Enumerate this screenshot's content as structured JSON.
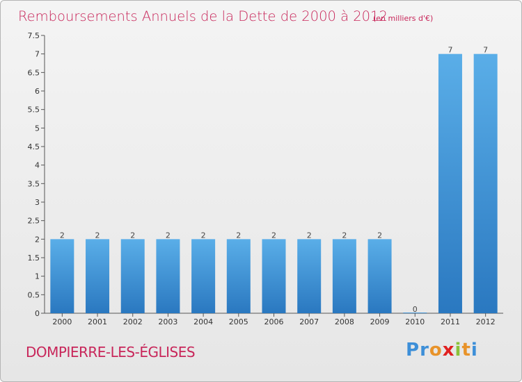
{
  "chart_data": {
    "type": "bar",
    "title": "Remboursements Annuels de la Dette de 2000 à 2012",
    "subtitle": "(en milliers d'€)",
    "categories": [
      "2000",
      "2001",
      "2002",
      "2003",
      "2004",
      "2005",
      "2006",
      "2007",
      "2008",
      "2009",
      "2010",
      "2011",
      "2012"
    ],
    "values": [
      2,
      2,
      2,
      2,
      2,
      2,
      2,
      2,
      2,
      2,
      0,
      7,
      7
    ],
    "data_labels": [
      "2",
      "2",
      "2",
      "2",
      "2",
      "2",
      "2",
      "2",
      "2",
      "2",
      "0",
      "7",
      "7"
    ],
    "ylim": [
      0,
      7.5
    ],
    "yticks": [
      "0",
      "0.5",
      "1",
      "1.5",
      "2",
      "2.5",
      "3",
      "3.5",
      "4",
      "4.5",
      "5",
      "5.5",
      "6",
      "6.5",
      "7",
      "7.5"
    ],
    "grid": false,
    "bar_color": "#3a8fd6"
  },
  "footer": {
    "commune": "DOMPIERRE-LES-ÉGLISES",
    "brand_letters": [
      "P",
      "r",
      "o",
      "x",
      "i",
      "t",
      "i"
    ],
    "brand_colors": [
      "#3d8fd8",
      "#3d8fd8",
      "#e8932a",
      "#e02020",
      "#8bc23a",
      "#e8932a",
      "#3d8fd8"
    ]
  }
}
